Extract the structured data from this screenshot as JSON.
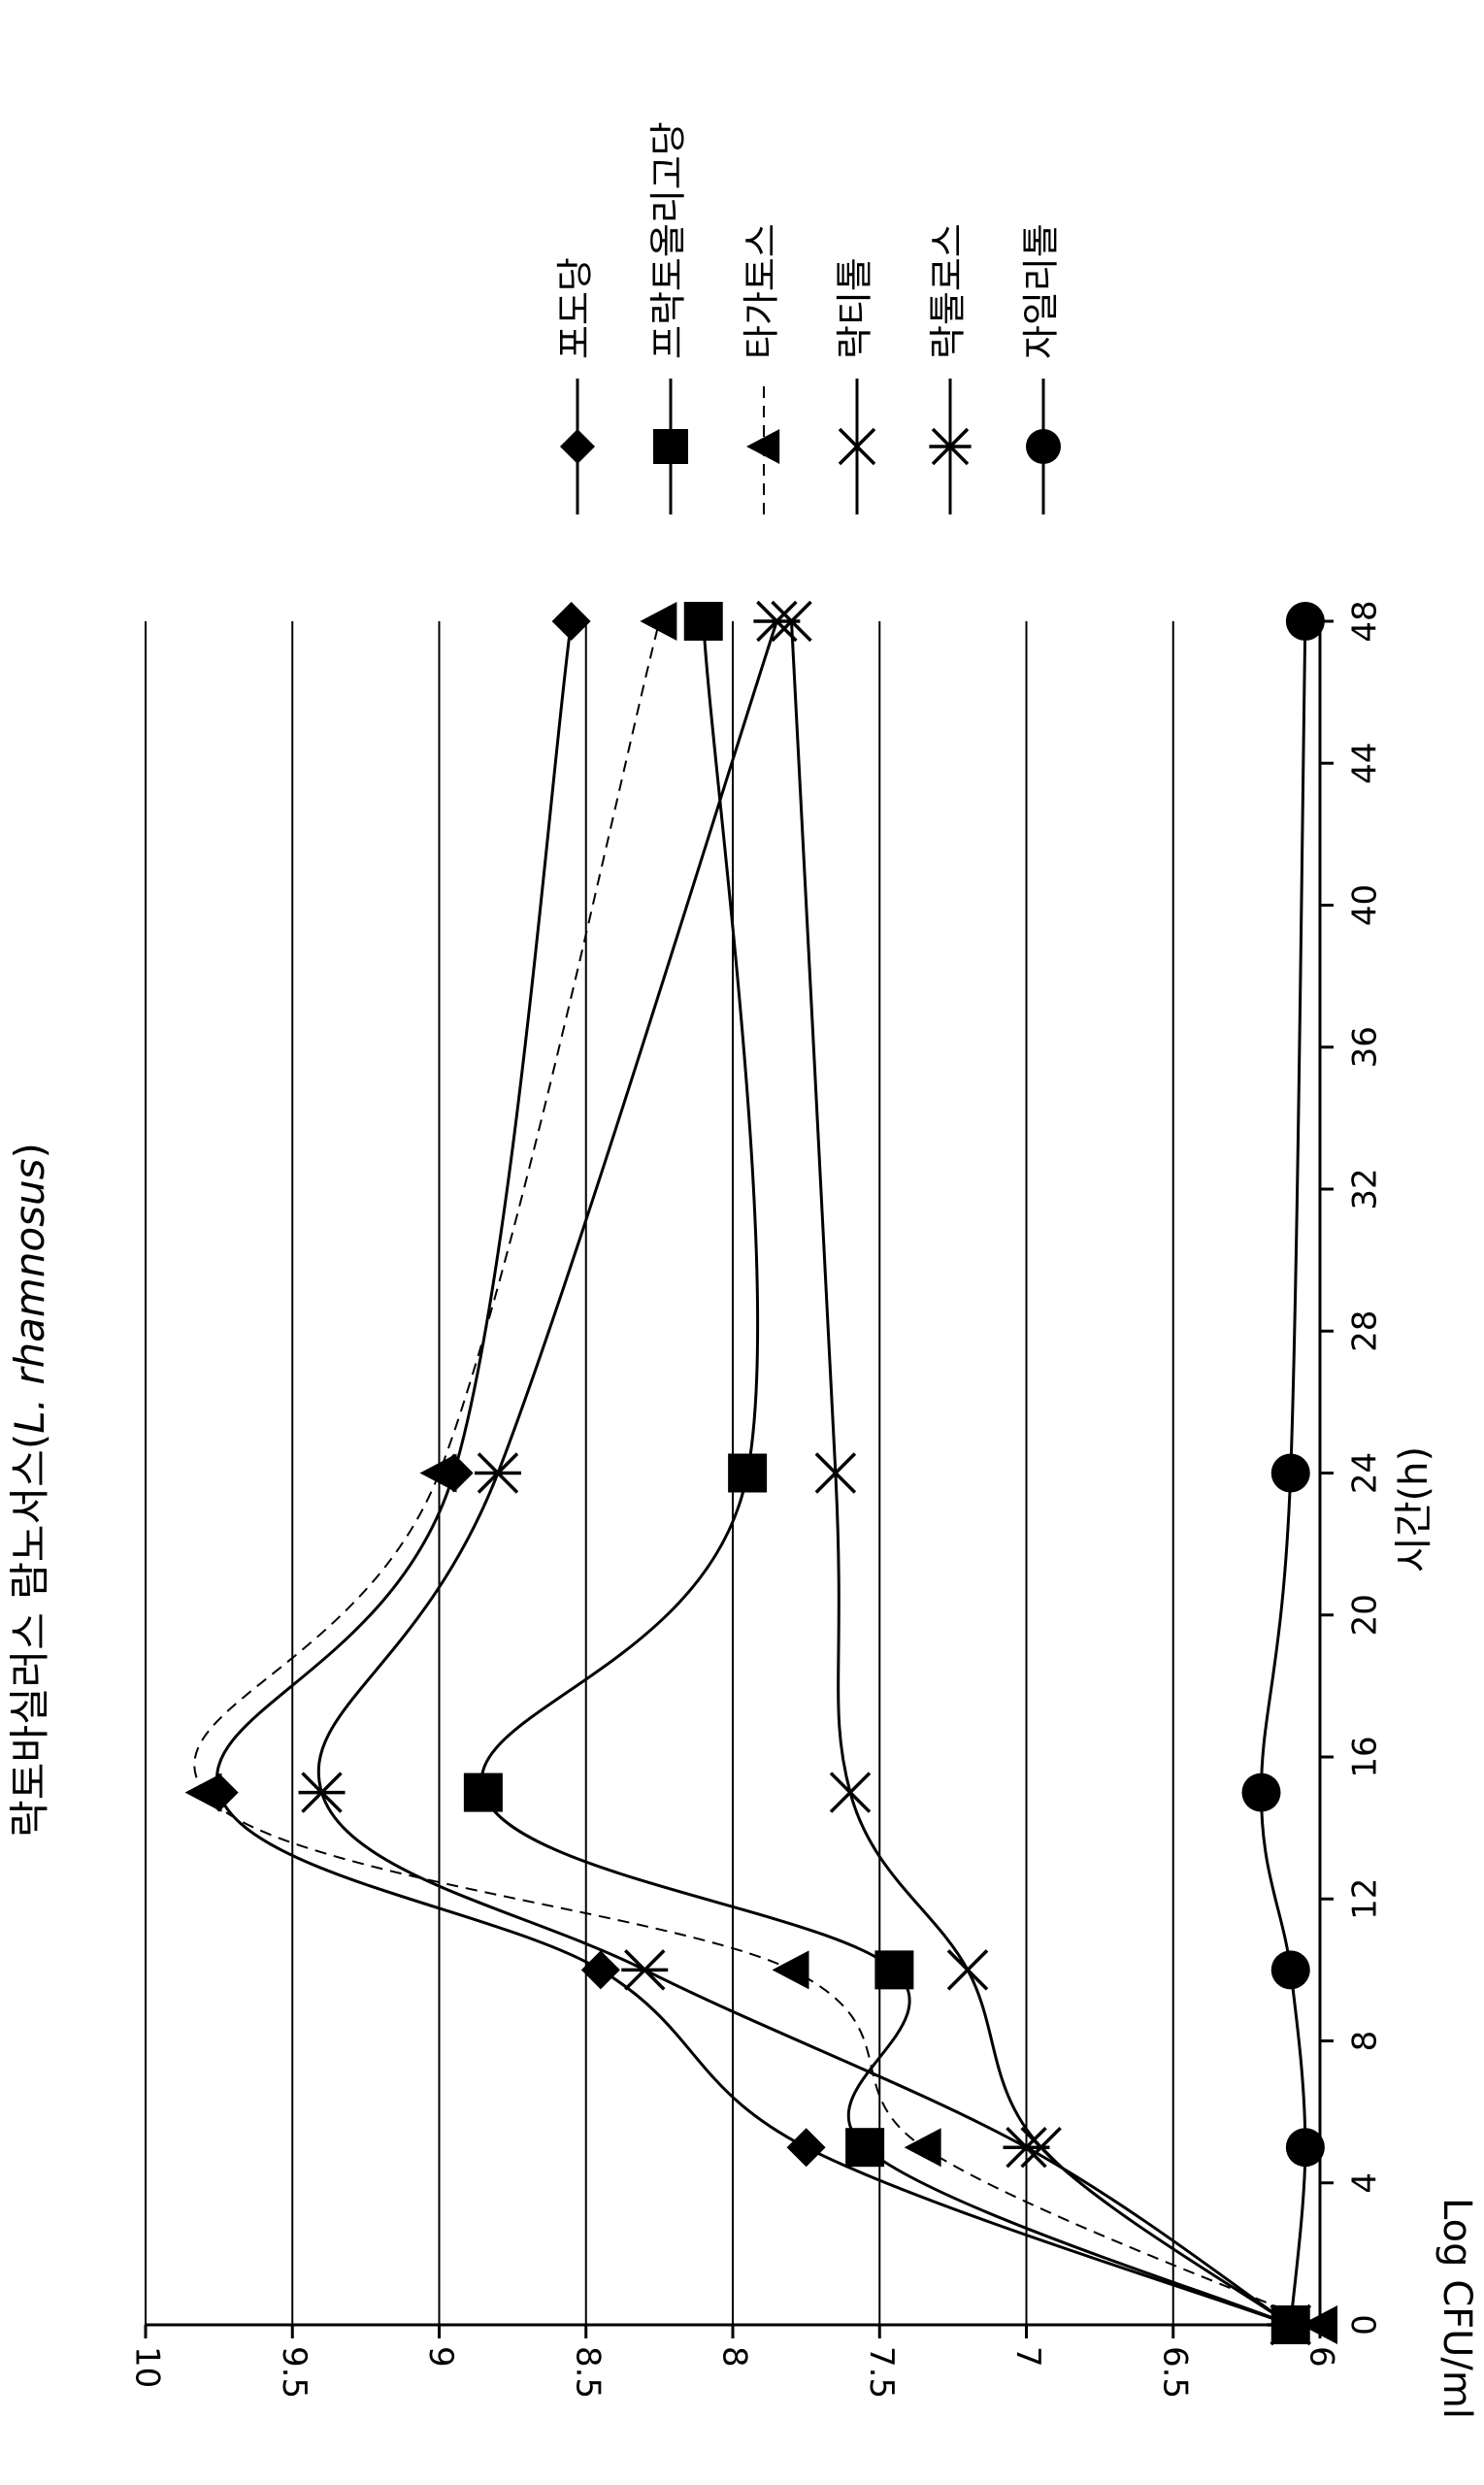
{
  "chart_data": {
    "type": "line",
    "title_main": "락토바실러스 람노서스(",
    "title_species": "L. rhamnosus",
    "title_close": ")",
    "xlabel": "시간(h)",
    "ylabel": "Log CFU/ml",
    "xlim": [
      0,
      48
    ],
    "ylim": [
      6,
      10
    ],
    "xticks": [
      0,
      4,
      8,
      12,
      16,
      20,
      24,
      28,
      32,
      36,
      40,
      44,
      48
    ],
    "yticks": [
      6,
      6.5,
      7,
      7.5,
      8,
      8.5,
      9,
      9.5,
      10
    ],
    "ytick_labels": [
      "6",
      "6.5",
      "7",
      "7.5",
      "8",
      "8.5",
      "9",
      "9.5",
      "10"
    ],
    "grid": "horizontal",
    "legend_position": "right",
    "x": [
      0,
      5,
      10,
      15,
      24,
      48
    ],
    "series": [
      {
        "name": "포도당",
        "marker": "diamond",
        "dash": "solid",
        "values": [
          6.1,
          7.75,
          8.45,
          9.75,
          8.95,
          8.55
        ]
      },
      {
        "name": "프락토올리고당",
        "marker": "square",
        "dash": "solid",
        "values": [
          6.1,
          7.55,
          7.45,
          8.85,
          7.95,
          8.1
        ]
      },
      {
        "name": "타가토스",
        "marker": "triangle",
        "dash": "dashed",
        "values": [
          6.0,
          7.35,
          7.8,
          9.8,
          9.0,
          8.25
        ]
      },
      {
        "name": "락티톨",
        "marker": "x",
        "dash": "solid",
        "values": [
          6.1,
          6.95,
          7.2,
          7.6,
          7.65,
          7.8
        ]
      },
      {
        "name": "락툴로스",
        "marker": "asterisk",
        "dash": "solid",
        "values": [
          6.1,
          7.0,
          8.3,
          9.4,
          8.8,
          7.85
        ]
      },
      {
        "name": "자일리톨",
        "marker": "circle",
        "dash": "solid",
        "values": [
          6.1,
          6.05,
          6.1,
          6.2,
          6.1,
          6.05
        ]
      }
    ]
  }
}
